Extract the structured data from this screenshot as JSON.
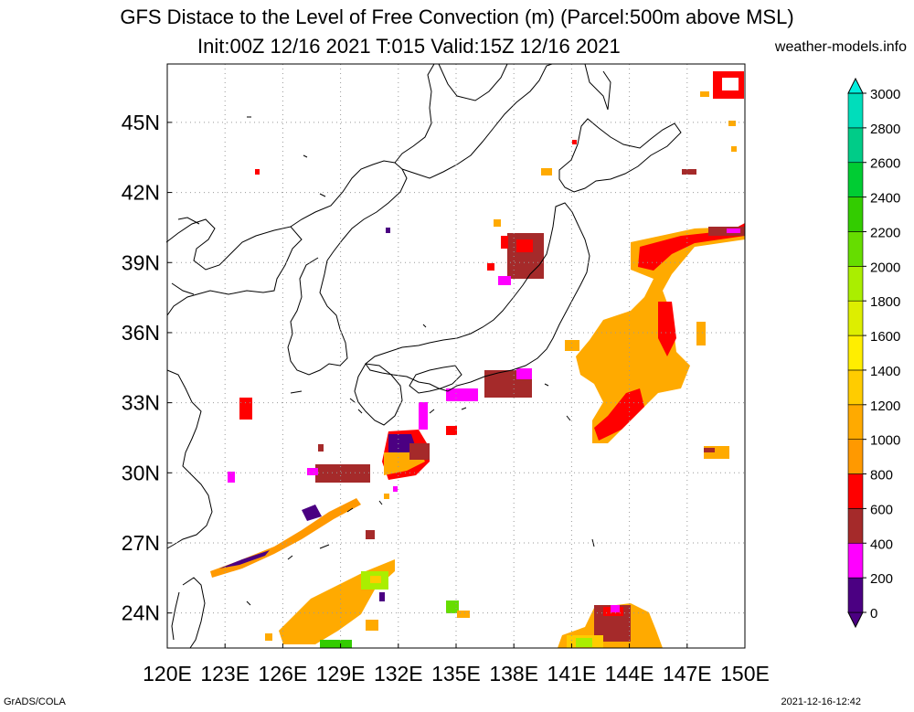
{
  "title": {
    "line1": "GFS Distace to the Level of Free Convection (m) (Parcel:500m above MSL)",
    "line2": "Init:00Z 12/16 2021 T:015 Valid:15Z 12/16 2021"
  },
  "site": "weather-models.info",
  "footer": {
    "left": "GrADS/COLA",
    "right": "2021-12-16-12:42"
  },
  "map": {
    "lon_range": [
      120,
      150
    ],
    "lat_range": [
      22.5,
      47.5
    ],
    "lon_ticks": [
      "120E",
      "123E",
      "126E",
      "129E",
      "132E",
      "135E",
      "138E",
      "141E",
      "144E",
      "147E",
      "150E"
    ],
    "lat_ticks": [
      "24N",
      "27N",
      "30N",
      "33N",
      "36N",
      "39N",
      "42N",
      "45N"
    ],
    "grid": "dotted"
  },
  "colorbar": {
    "labels": [
      "0",
      "200",
      "400",
      "600",
      "800",
      "1000",
      "1200",
      "1400",
      "1600",
      "1800",
      "2000",
      "2200",
      "2400",
      "2600",
      "2800",
      "3000"
    ],
    "colors": [
      "#4b0082",
      "#ff00ff",
      "#a52a2a",
      "#ff0000",
      "#ff9900",
      "#ffaa00",
      "#ffcc00",
      "#ffee00",
      "#ddee00",
      "#aaee00",
      "#66dd00",
      "#33cc00",
      "#00cc33",
      "#00cc88",
      "#00ddbb",
      "#00eedd"
    ]
  }
}
